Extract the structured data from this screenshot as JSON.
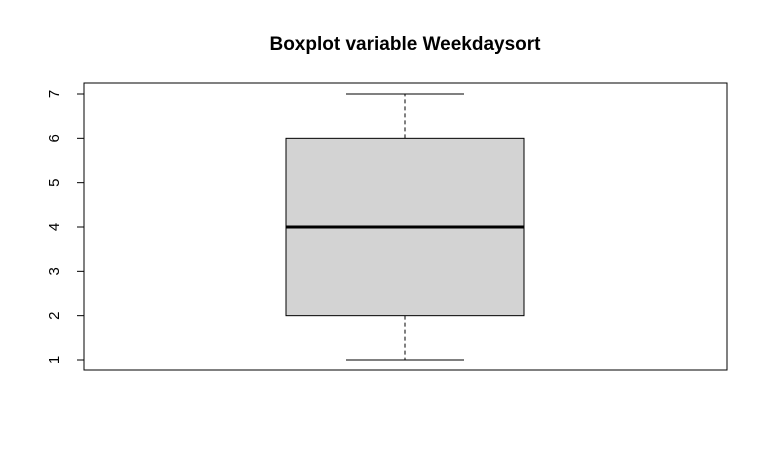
{
  "chart_data": {
    "type": "boxplot",
    "title": "Boxplot variable Weekdaysort",
    "xlabel": "",
    "ylabel": "",
    "ylim": [
      1,
      7
    ],
    "y_ticks": [
      "1",
      "2",
      "3",
      "4",
      "5",
      "6",
      "7"
    ],
    "box": {
      "min": 1,
      "q1": 2,
      "median": 4,
      "q3": 6,
      "max": 7
    },
    "box_fill": "#d3d3d3",
    "stroke": "#000000"
  }
}
